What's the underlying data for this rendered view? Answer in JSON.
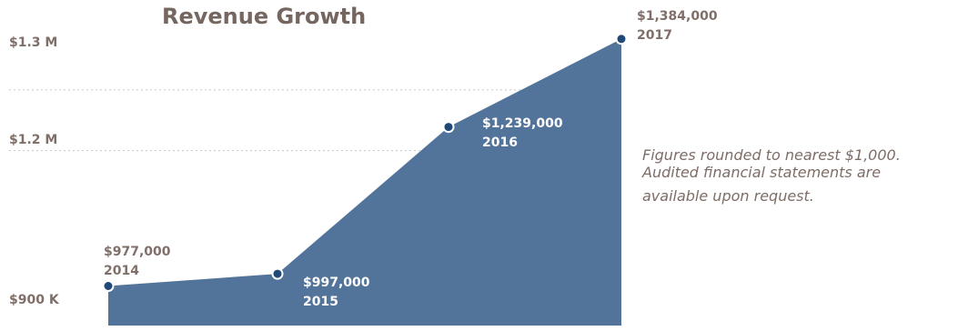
{
  "chart_data": {
    "type": "area",
    "title": "Revenue Growth",
    "x": [
      "2014",
      "2015",
      "2016",
      "2017"
    ],
    "series": [
      {
        "values": [
          977000,
          997000,
          1239000,
          1384000
        ]
      }
    ],
    "value_labels": [
      "$977,000",
      "$997,000",
      "$1,239,000",
      "$1,384,000"
    ],
    "y_ticks": [
      {
        "value": 900000,
        "label": "$900 K"
      },
      {
        "value": 1200000,
        "label": "$1.2 M"
      },
      {
        "value": 1300000,
        "label": "$1.3 M"
      }
    ],
    "ylim": [
      900000,
      1384000
    ],
    "grid": true,
    "legend": "none"
  },
  "notes": [
    "Figures rounded to nearest $1,000.",
    "Audited financial statements are",
    "available upon request."
  ],
  "colors": {
    "area_fill": "#53749a",
    "point": "#1f4a78",
    "title": "#766660",
    "label_on_white": "#806f69",
    "label_on_area": "#ffffff",
    "note": "#7e6d67",
    "grid": "#c8c8c8"
  }
}
